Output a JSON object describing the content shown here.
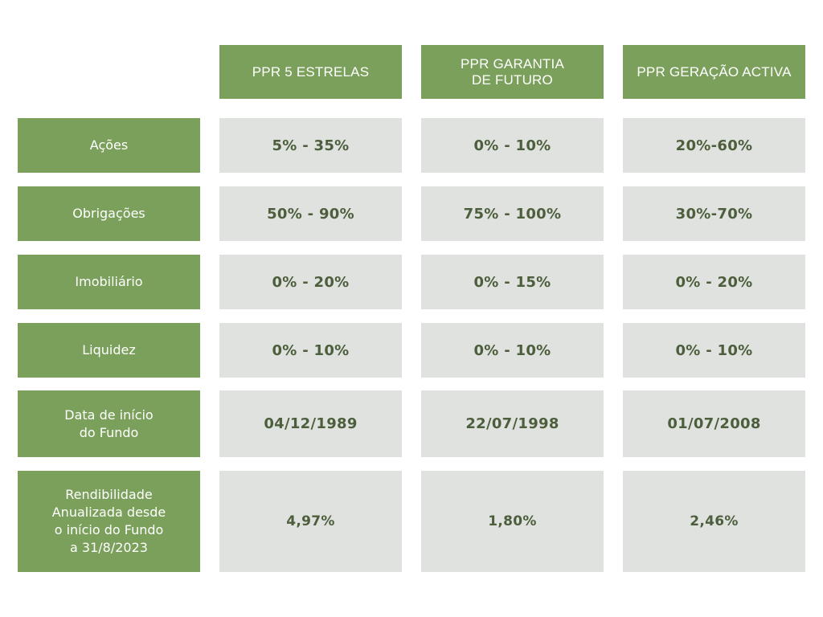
{
  "headers": [
    "PPR 5 ESTRELAS",
    "PPR GARANTIA\nDE FUTURO",
    "PPR GERAÇÃO ACTIVA"
  ],
  "rows": [
    {
      "label": "Ações",
      "values": [
        "5% - 35%",
        "0% - 10%",
        "20%-60%"
      ]
    },
    {
      "label": "Obrigações",
      "values": [
        "50% - 90%",
        "75% - 100%",
        "30%-70%"
      ]
    },
    {
      "label": "Imobiliário",
      "values": [
        "0% - 20%",
        "0% - 15%",
        "0% - 20%"
      ]
    },
    {
      "label": "Liquidez",
      "values": [
        "0% - 10%",
        "0% - 10%",
        "0% - 10%"
      ]
    },
    {
      "label": "Data de início\ndo Fundo",
      "values": [
        "04/12/1989",
        "22/07/1998",
        "01/07/2008"
      ]
    },
    {
      "label": "Rendibilidade\nAnualizada desde\no início do Fundo\na 31/8/2023",
      "values": [
        "4,97%",
        "1,80%",
        "2,46%"
      ]
    }
  ],
  "colors": {
    "header_bg": "#7ba05b",
    "label_bg": "#7ba05b",
    "cell_bg": "#dfe2df",
    "cell_text": "#4d5e3c",
    "header_text": "#ffffff"
  }
}
